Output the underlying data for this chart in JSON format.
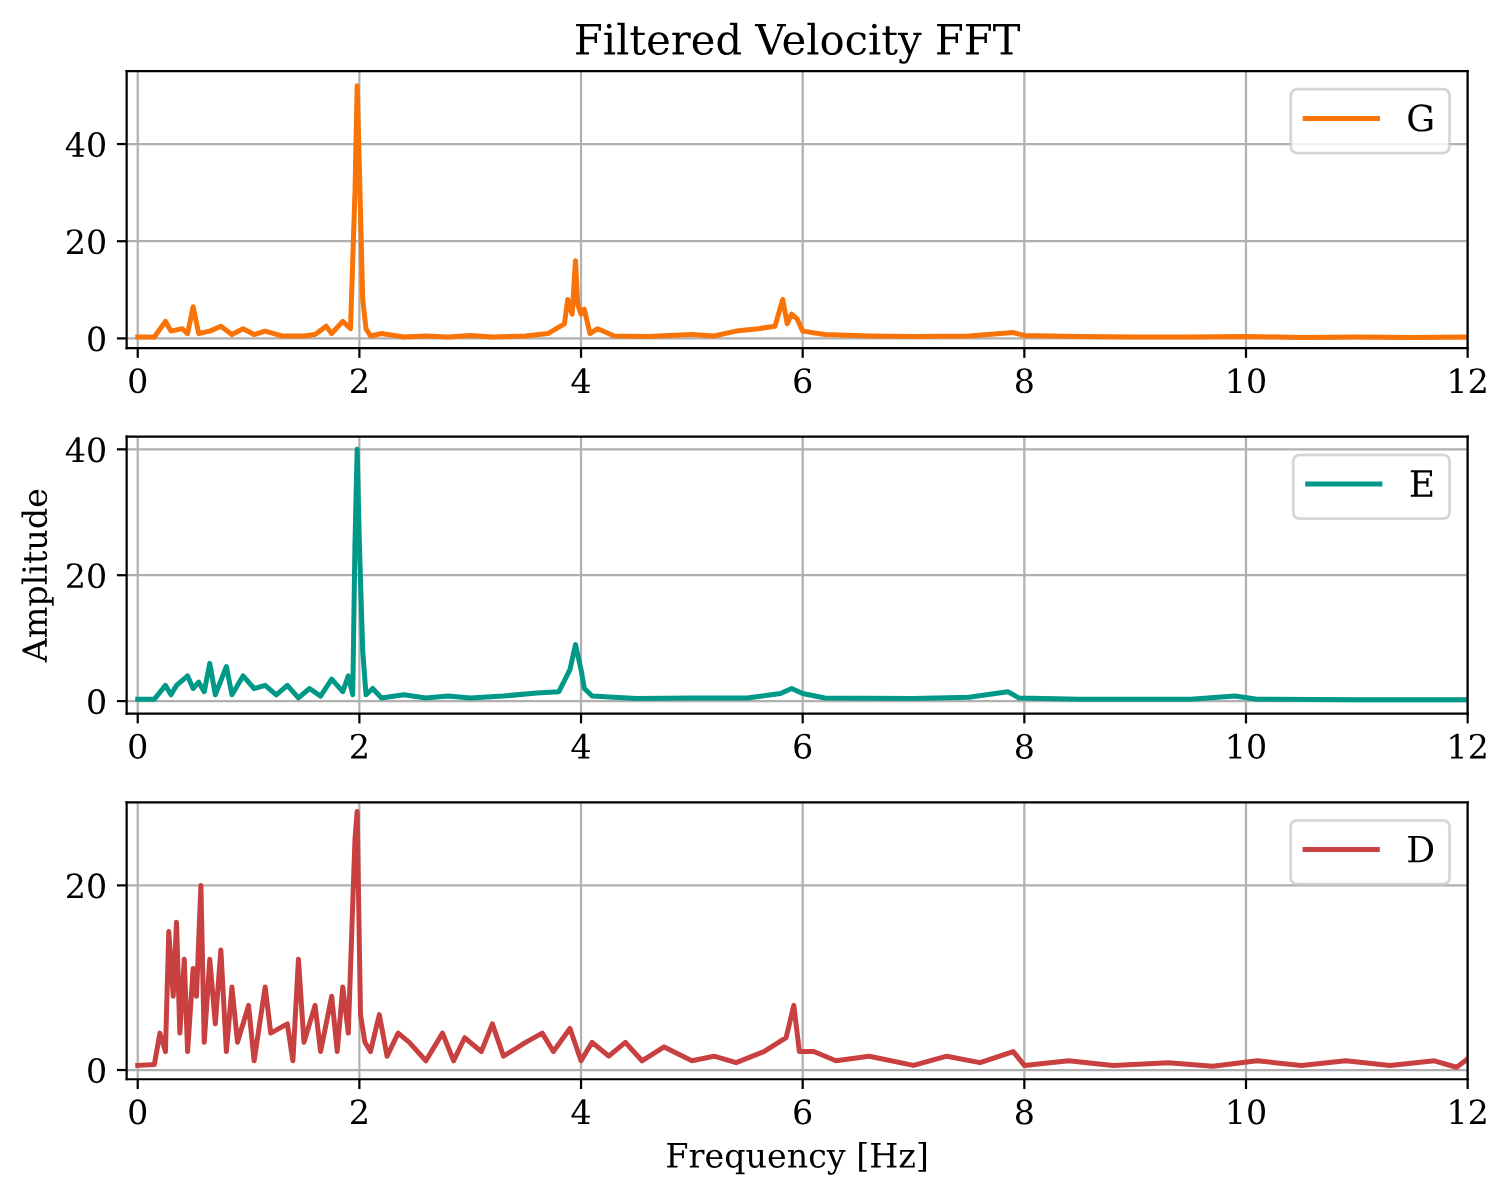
{
  "chart_data": [
    {
      "type": "line",
      "title": "Filtered Velocity FFT",
      "xlim": [
        -0.1,
        12
      ],
      "xticks": [
        0,
        2,
        4,
        6,
        8,
        10,
        12
      ],
      "ylim": [
        -2,
        55
      ],
      "yticks": [
        0,
        20,
        40
      ],
      "grid": true,
      "legend": "top right",
      "x": [
        0,
        0.15,
        0.25,
        0.3,
        0.4,
        0.45,
        0.5,
        0.55,
        0.65,
        0.75,
        0.85,
        0.95,
        1.05,
        1.15,
        1.3,
        1.5,
        1.6,
        1.7,
        1.75,
        1.85,
        1.92,
        1.96,
        1.98,
        2.0,
        2.03,
        2.06,
        2.1,
        2.2,
        2.4,
        2.6,
        2.8,
        3.0,
        3.2,
        3.5,
        3.7,
        3.85,
        3.88,
        3.92,
        3.95,
        3.97,
        4.0,
        4.03,
        4.08,
        4.15,
        4.3,
        4.6,
        5.0,
        5.2,
        5.4,
        5.6,
        5.75,
        5.82,
        5.86,
        5.9,
        5.95,
        6.0,
        6.2,
        6.6,
        7.0,
        7.5,
        7.9,
        8.0,
        8.5,
        9.0,
        9.5,
        10.0,
        10.5,
        11.0,
        11.5,
        12.0
      ],
      "series": [
        {
          "name": "G",
          "color": "#f97306",
          "values": [
            0.3,
            0.3,
            3.5,
            1.5,
            2,
            1,
            6.5,
            1,
            1.5,
            2.5,
            0.8,
            2,
            0.8,
            1.5,
            0.5,
            0.5,
            0.8,
            2.5,
            1,
            3.5,
            2,
            30,
            52,
            35,
            8,
            2,
            0.5,
            1,
            0.3,
            0.5,
            0.3,
            0.6,
            0.3,
            0.5,
            1,
            3,
            8,
            5,
            16,
            7,
            5,
            6,
            1,
            2,
            0.5,
            0.4,
            0.8,
            0.5,
            1.5,
            2,
            2.5,
            8,
            3,
            5,
            4,
            1.5,
            0.8,
            0.5,
            0.4,
            0.5,
            1.2,
            0.6,
            0.4,
            0.3,
            0.3,
            0.4,
            0.2,
            0.3,
            0.2,
            0.3
          ]
        }
      ]
    },
    {
      "type": "line",
      "ylabel": "Amplitude",
      "xlim": [
        -0.1,
        12
      ],
      "xticks": [
        0,
        2,
        4,
        6,
        8,
        10,
        12
      ],
      "ylim": [
        -2,
        42
      ],
      "yticks": [
        0,
        20,
        40
      ],
      "grid": true,
      "legend": "top right",
      "x": [
        0,
        0.15,
        0.25,
        0.3,
        0.35,
        0.45,
        0.5,
        0.55,
        0.6,
        0.65,
        0.7,
        0.8,
        0.85,
        0.95,
        1.05,
        1.15,
        1.25,
        1.35,
        1.45,
        1.55,
        1.65,
        1.75,
        1.85,
        1.9,
        1.94,
        1.96,
        1.98,
        2.0,
        2.03,
        2.06,
        2.12,
        2.2,
        2.4,
        2.6,
        2.8,
        3.0,
        3.3,
        3.6,
        3.8,
        3.9,
        3.95,
        4.0,
        4.03,
        4.1,
        4.5,
        5.0,
        5.5,
        5.8,
        5.9,
        6.0,
        6.2,
        7.0,
        7.5,
        7.85,
        7.95,
        8.5,
        9.0,
        9.5,
        9.9,
        10.1,
        11.0,
        12.0
      ],
      "series": [
        {
          "name": "E",
          "color": "#009988",
          "values": [
            0.3,
            0.3,
            2.5,
            1,
            2.5,
            4,
            2,
            3,
            1.5,
            6,
            1,
            5.5,
            1,
            4,
            2,
            2.5,
            1,
            2.5,
            0.5,
            2,
            0.8,
            3.5,
            1.5,
            4,
            1,
            25,
            40,
            25,
            8,
            1,
            2,
            0.5,
            1,
            0.5,
            0.8,
            0.5,
            0.8,
            1.3,
            1.5,
            5,
            9,
            5,
            2,
            0.8,
            0.4,
            0.5,
            0.5,
            1.2,
            2,
            1.2,
            0.5,
            0.4,
            0.6,
            1.5,
            0.5,
            0.3,
            0.3,
            0.3,
            0.8,
            0.3,
            0.2,
            0.2
          ]
        }
      ]
    },
    {
      "type": "line",
      "xlabel": "Frequency [Hz]",
      "xlim": [
        -0.1,
        12
      ],
      "xticks": [
        0,
        2,
        4,
        6,
        8,
        10,
        12
      ],
      "ylim": [
        -1,
        29
      ],
      "yticks": [
        0,
        20
      ],
      "grid": true,
      "legend": "top right",
      "x": [
        0,
        0.15,
        0.2,
        0.25,
        0.28,
        0.32,
        0.35,
        0.38,
        0.42,
        0.45,
        0.5,
        0.53,
        0.57,
        0.6,
        0.65,
        0.7,
        0.75,
        0.8,
        0.85,
        0.9,
        1.0,
        1.05,
        1.15,
        1.2,
        1.35,
        1.4,
        1.45,
        1.5,
        1.6,
        1.65,
        1.75,
        1.8,
        1.85,
        1.9,
        1.96,
        1.98,
        2.01,
        2.05,
        2.1,
        2.18,
        2.25,
        2.35,
        2.45,
        2.6,
        2.75,
        2.85,
        2.95,
        3.1,
        3.2,
        3.3,
        3.5,
        3.65,
        3.75,
        3.9,
        4.0,
        4.1,
        4.25,
        4.4,
        4.55,
        4.75,
        5.0,
        5.2,
        5.4,
        5.65,
        5.85,
        5.92,
        5.97,
        6.1,
        6.3,
        6.6,
        7.0,
        7.3,
        7.6,
        7.9,
        8.0,
        8.4,
        8.8,
        9.3,
        9.7,
        10.1,
        10.5,
        10.9,
        11.3,
        11.7,
        11.9,
        12.0
      ],
      "series": [
        {
          "name": "D",
          "color": "#c84040",
          "values": [
            0.5,
            0.6,
            4,
            2,
            15,
            8,
            16,
            4,
            12,
            2,
            11,
            8,
            20,
            3,
            12,
            5,
            13,
            2,
            9,
            3,
            7,
            1,
            9,
            4,
            5,
            1,
            12,
            3,
            7,
            2,
            8,
            2,
            9,
            4,
            25,
            28,
            6,
            3,
            2,
            6,
            1.5,
            4,
            3,
            1,
            4,
            1,
            3.5,
            2,
            5,
            1.5,
            3,
            4,
            2,
            4.5,
            1,
            3,
            1.5,
            3,
            1,
            2.5,
            1,
            1.5,
            0.8,
            2,
            3.5,
            7,
            2,
            2,
            1,
            1.5,
            0.5,
            1.5,
            0.8,
            2,
            0.5,
            1,
            0.5,
            0.8,
            0.4,
            1,
            0.5,
            1,
            0.5,
            1,
            0.3,
            1.2
          ]
        }
      ]
    }
  ]
}
